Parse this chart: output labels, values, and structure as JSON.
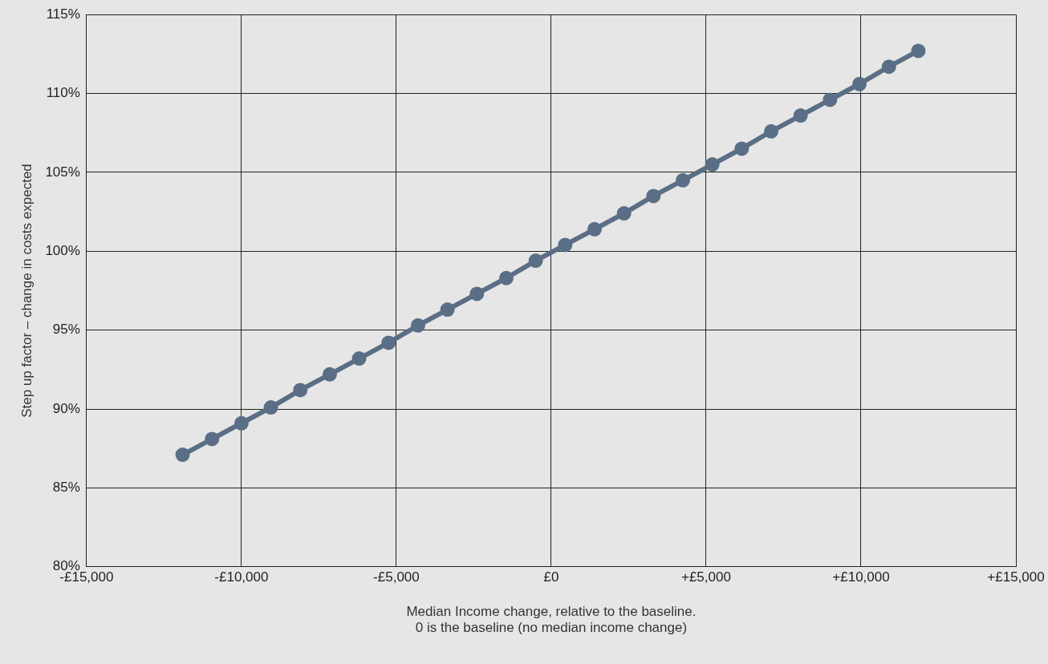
{
  "chart_data": {
    "type": "line",
    "xlabel": "Median Income change, relative to the baseline.\n0 is the baseline (no median income change)",
    "ylabel": "Step up factor – change in costs expected",
    "x": [
      -11900,
      -10950,
      -10000,
      -9050,
      -8100,
      -7150,
      -6200,
      -5250,
      -4300,
      -3350,
      -2400,
      -1450,
      -500,
      450,
      1400,
      2350,
      3300,
      4250,
      5200,
      6150,
      7100,
      8050,
      9000,
      9950,
      10900,
      11850
    ],
    "series": [
      {
        "color": "#5a6e85",
        "values": [
          87.1,
          88.1,
          89.1,
          90.1,
          91.2,
          92.2,
          93.2,
          94.2,
          95.3,
          96.3,
          97.3,
          98.3,
          99.4,
          100.4,
          101.4,
          102.4,
          103.5,
          104.5,
          105.5,
          106.5,
          107.6,
          108.6,
          109.6,
          110.6,
          111.7,
          112.7
        ]
      }
    ],
    "xlim": [
      -15000,
      15000
    ],
    "xticks": [
      {
        "value": -15000,
        "label": "-£15,000"
      },
      {
        "value": -10000,
        "label": "-£10,000"
      },
      {
        "value": -5000,
        "label": "-£5,000"
      },
      {
        "value": 0,
        "label": "£0"
      },
      {
        "value": 5000,
        "label": "+£5,000"
      },
      {
        "value": 10000,
        "label": "+£10,000"
      },
      {
        "value": 15000,
        "label": "+£15,000"
      }
    ],
    "ylim": [
      80,
      115
    ],
    "yticks": [
      {
        "value": 80,
        "label": "80%"
      },
      {
        "value": 85,
        "label": "85%"
      },
      {
        "value": 90,
        "label": "90%"
      },
      {
        "value": 95,
        "label": "95%"
      },
      {
        "value": 100,
        "label": "100%"
      },
      {
        "value": 105,
        "label": "105%"
      },
      {
        "value": 110,
        "label": "110%"
      },
      {
        "value": 115,
        "label": "115%"
      }
    ],
    "grid": true,
    "marker": "circle",
    "line_style": "solid"
  }
}
